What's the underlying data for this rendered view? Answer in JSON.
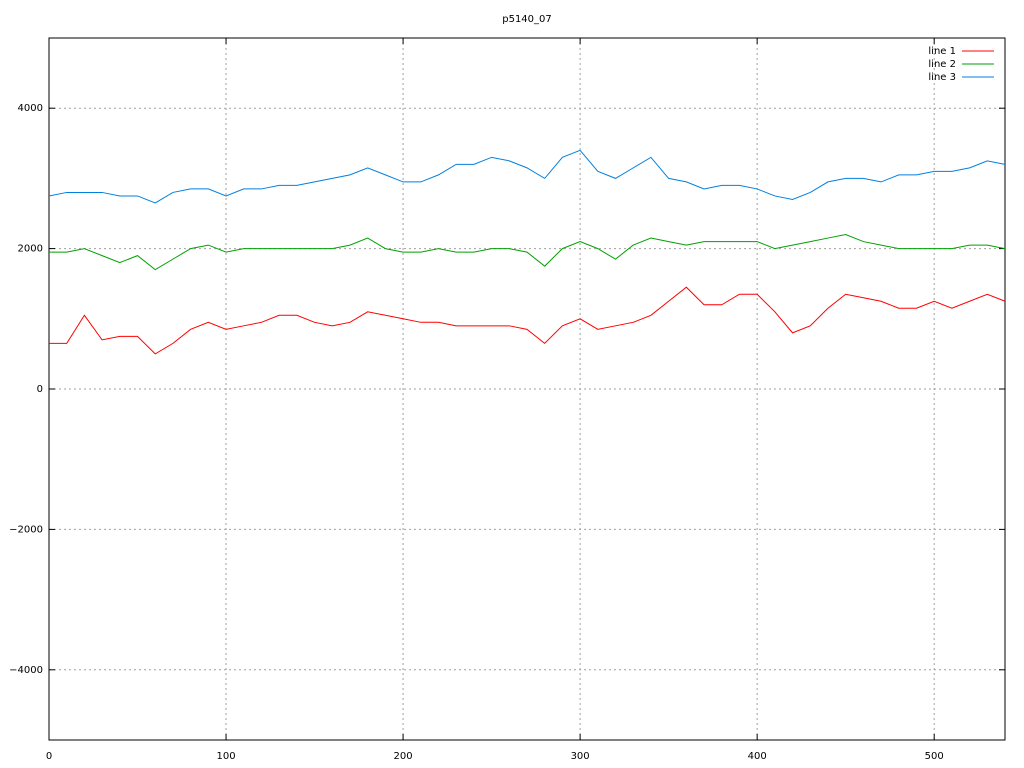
{
  "chart_data": {
    "type": "line",
    "title": "p5140_07",
    "x": [
      0,
      10,
      20,
      30,
      40,
      50,
      60,
      70,
      80,
      90,
      100,
      110,
      120,
      130,
      140,
      150,
      160,
      170,
      180,
      190,
      200,
      210,
      220,
      230,
      240,
      250,
      260,
      270,
      280,
      290,
      300,
      310,
      320,
      330,
      340,
      350,
      360,
      370,
      380,
      390,
      400,
      410,
      420,
      430,
      440,
      450,
      460,
      470,
      480,
      490,
      500,
      510,
      520,
      530,
      540
    ],
    "series": [
      {
        "name": "line 1",
        "color": "#ff0000",
        "values": [
          650,
          650,
          1050,
          700,
          750,
          750,
          500,
          650,
          850,
          950,
          850,
          900,
          950,
          1050,
          1050,
          950,
          900,
          950,
          1100,
          1050,
          1000,
          950,
          950,
          900,
          900,
          900,
          900,
          850,
          650,
          900,
          1000,
          850,
          900,
          950,
          1050,
          1250,
          1450,
          1200,
          1200,
          1350,
          1350,
          1100,
          800,
          900,
          1150,
          1350,
          1300,
          1250,
          1150,
          1150,
          1250,
          1150,
          1250,
          1350,
          1250
        ]
      },
      {
        "name": "line 2",
        "color": "#00a000",
        "values": [
          1950,
          1950,
          2000,
          1900,
          1800,
          1900,
          1700,
          1850,
          2000,
          2050,
          1950,
          2000,
          2000,
          2000,
          2000,
          2000,
          2000,
          2050,
          2150,
          2000,
          1950,
          1950,
          2000,
          1950,
          1950,
          2000,
          2000,
          1950,
          1750,
          2000,
          2100,
          2000,
          1850,
          2050,
          2150,
          2100,
          2050,
          2100,
          2100,
          2100,
          2100,
          2000,
          2050,
          2100,
          2150,
          2200,
          2100,
          2050,
          2000,
          2000,
          2000,
          2000,
          2050,
          2050,
          2000
        ]
      },
      {
        "name": "line 3",
        "color": "#0080e0",
        "values": [
          2750,
          2800,
          2800,
          2800,
          2750,
          2750,
          2650,
          2800,
          2850,
          2850,
          2750,
          2850,
          2850,
          2900,
          2900,
          2950,
          3000,
          3050,
          3150,
          3050,
          2950,
          2950,
          3050,
          3200,
          3200,
          3300,
          3250,
          3150,
          3000,
          3300,
          3400,
          3100,
          3000,
          3150,
          3300,
          3000,
          2950,
          2850,
          2900,
          2900,
          2850,
          2750,
          2700,
          2800,
          2950,
          3000,
          3000,
          2950,
          3050,
          3050,
          3100,
          3100,
          3150,
          3250,
          3200
        ]
      }
    ],
    "xlim": [
      0,
      540
    ],
    "ylim": [
      -5000,
      5000
    ],
    "xticks": [
      0,
      100,
      200,
      300,
      400,
      500
    ],
    "yticks": [
      {
        "value": -4000,
        "label": "−4000"
      },
      {
        "value": -2000,
        "label": "−2000"
      },
      0,
      2000,
      4000
    ],
    "grid": true,
    "legend": "top-right"
  }
}
